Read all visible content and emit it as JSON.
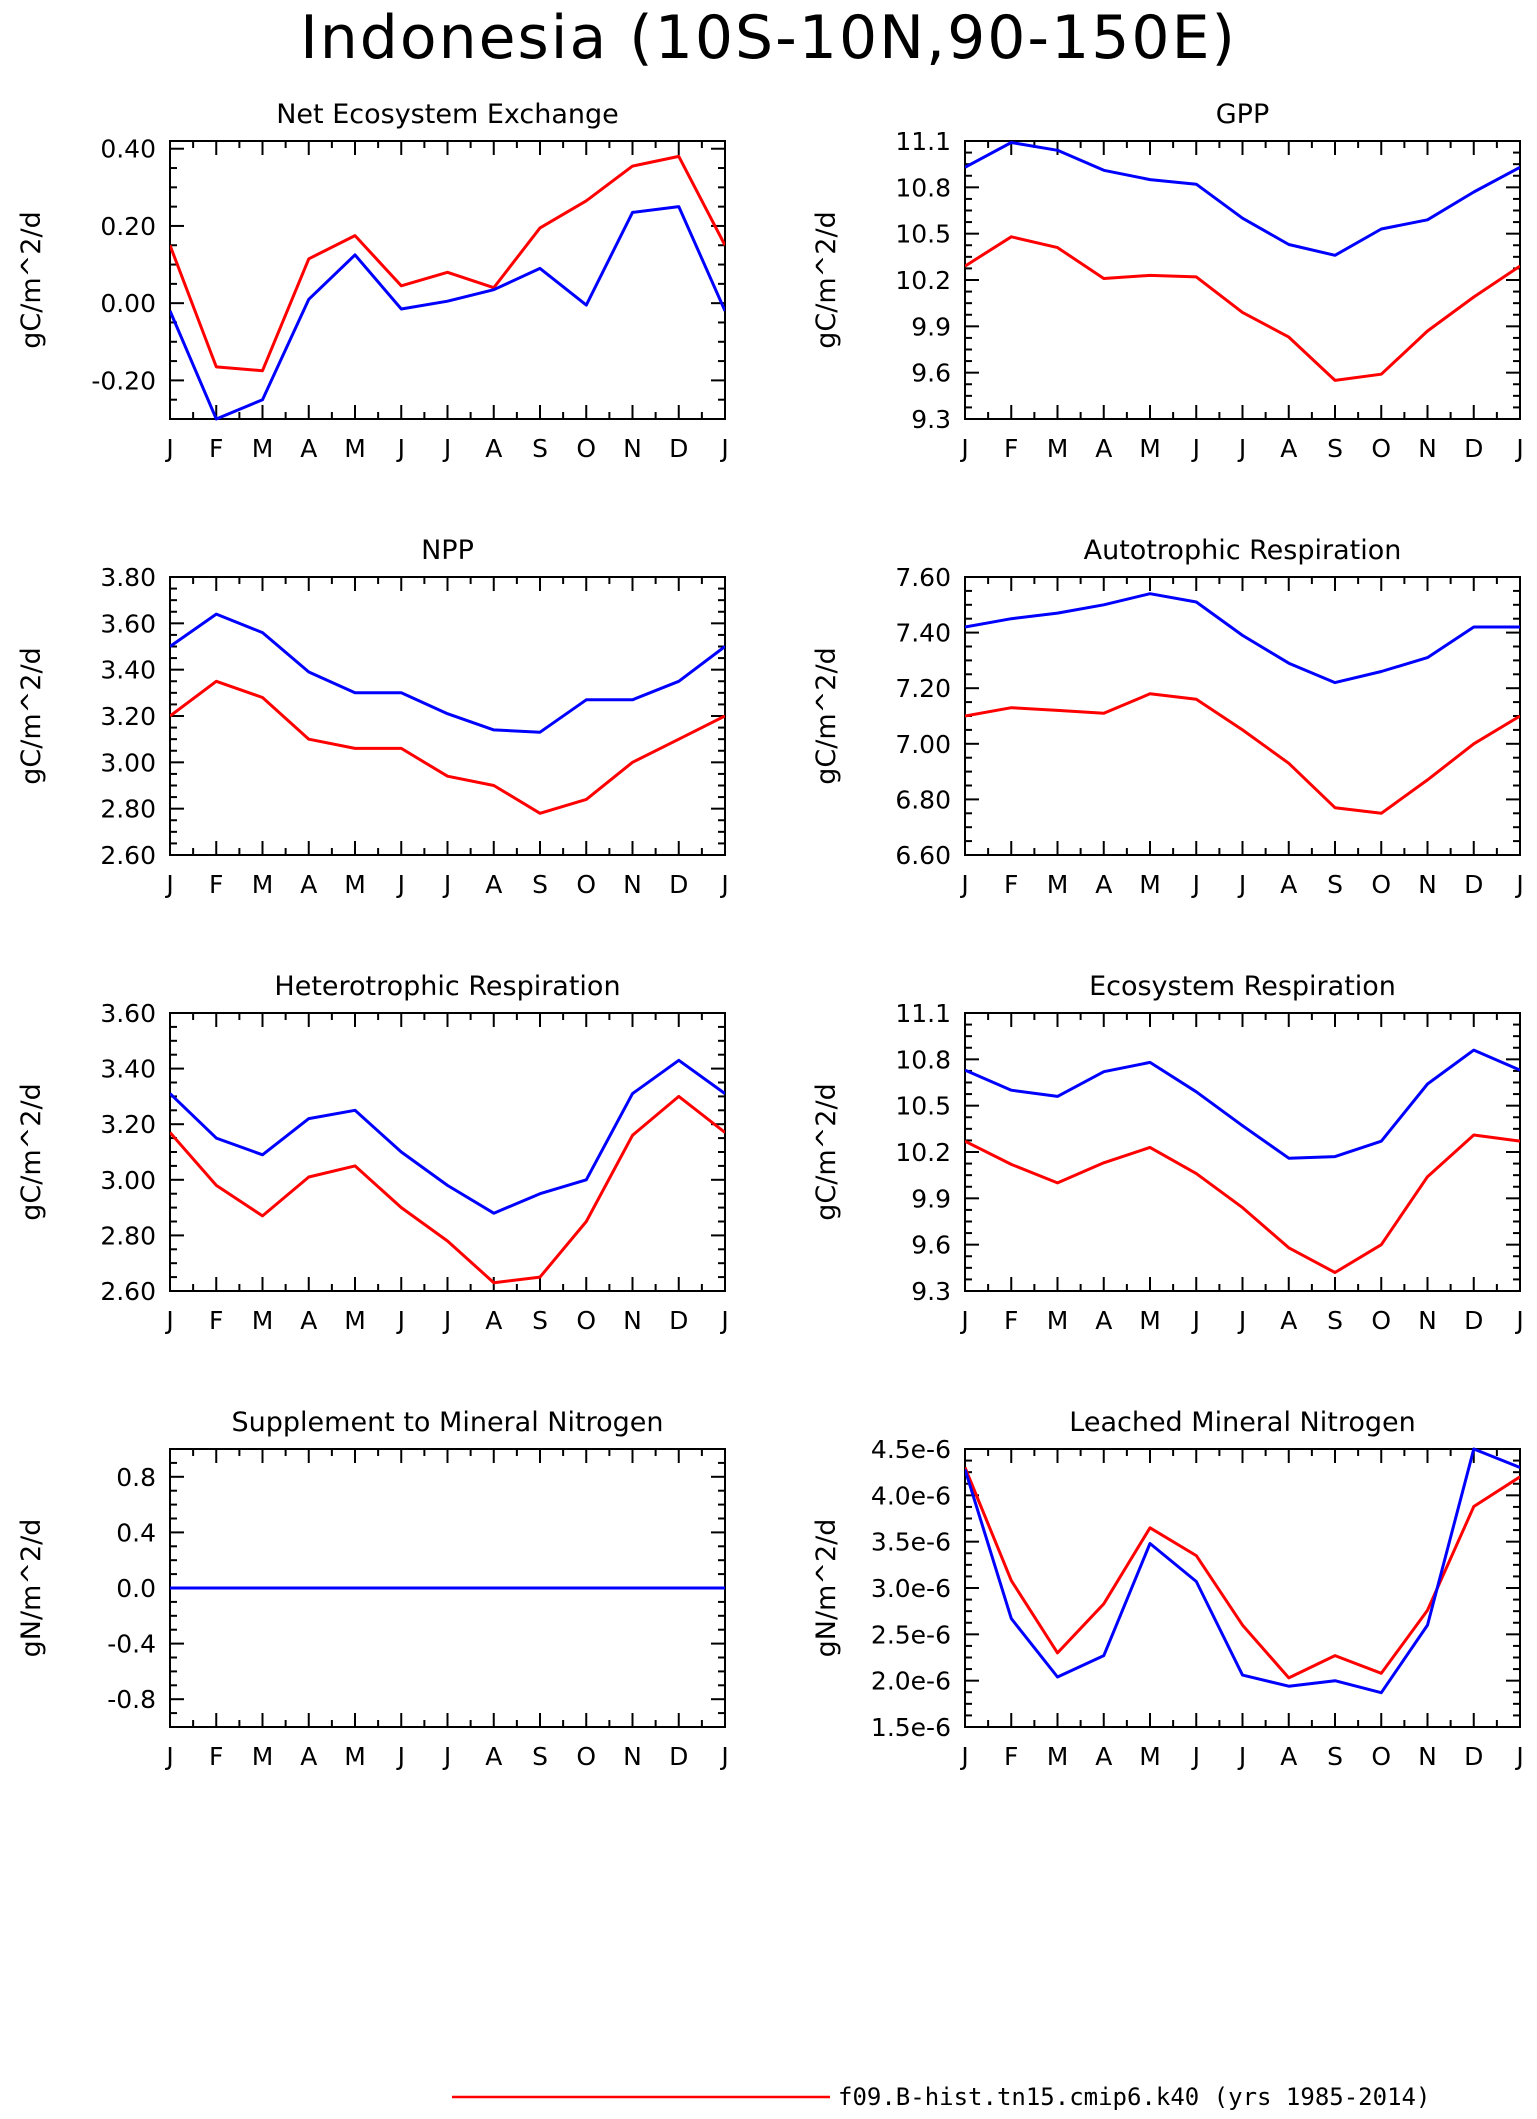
{
  "title": "Indonesia (10S-10N,90-150E)",
  "colors": {
    "case": "#ff0000",
    "obs": "#0000ff",
    "frame": "#000000"
  },
  "legend": {
    "entries": [
      {
        "label": "f09.B-hist.tn15.cmip6.k40 (yrs 1985-2014)",
        "color": "#ff0000"
      }
    ]
  },
  "chart_data": [
    {
      "type": "line",
      "title": "Net Ecosystem Exchange",
      "ylabel": "gC/m^2/d",
      "categories": [
        "J",
        "F",
        "M",
        "A",
        "M",
        "J",
        "J",
        "A",
        "S",
        "O",
        "N",
        "D",
        "J"
      ],
      "ylim": [
        -0.3,
        0.42
      ],
      "yticks": [
        -0.2,
        0.0,
        0.2,
        0.4
      ],
      "ytick_labels": [
        "-0.20",
        "0.00",
        "0.20",
        "0.40"
      ],
      "series": [
        {
          "color": "#ff0000",
          "values": [
            0.15,
            -0.165,
            -0.175,
            0.115,
            0.175,
            0.045,
            0.08,
            0.04,
            0.195,
            0.265,
            0.355,
            0.38,
            0.15
          ]
        },
        {
          "color": "#0000ff",
          "values": [
            -0.02,
            -0.3,
            -0.25,
            0.01,
            0.125,
            -0.015,
            0.005,
            0.035,
            0.09,
            -0.005,
            0.235,
            0.25,
            -0.02
          ]
        }
      ]
    },
    {
      "type": "line",
      "title": "GPP",
      "ylabel": "gC/m^2/d",
      "categories": [
        "J",
        "F",
        "M",
        "A",
        "M",
        "J",
        "J",
        "A",
        "S",
        "O",
        "N",
        "D",
        "J"
      ],
      "ylim": [
        9.3,
        11.1
      ],
      "yticks": [
        9.3,
        9.6,
        9.9,
        10.2,
        10.5,
        10.8,
        11.1
      ],
      "ytick_labels": [
        "9.3",
        "9.6",
        "9.9",
        "10.2",
        "10.5",
        "10.8",
        "11.1"
      ],
      "series": [
        {
          "color": "#ff0000",
          "values": [
            10.29,
            10.48,
            10.41,
            10.21,
            10.23,
            10.22,
            9.99,
            9.83,
            9.55,
            9.59,
            9.87,
            10.09,
            10.29
          ]
        },
        {
          "color": "#0000ff",
          "values": [
            10.93,
            11.09,
            11.04,
            10.91,
            10.85,
            10.82,
            10.6,
            10.43,
            10.36,
            10.53,
            10.59,
            10.77,
            10.93
          ]
        }
      ]
    },
    {
      "type": "line",
      "title": "NPP",
      "ylabel": "gC/m^2/d",
      "categories": [
        "J",
        "F",
        "M",
        "A",
        "M",
        "J",
        "J",
        "A",
        "S",
        "O",
        "N",
        "D",
        "J"
      ],
      "ylim": [
        2.6,
        3.8
      ],
      "yticks": [
        2.6,
        2.8,
        3.0,
        3.2,
        3.4,
        3.6,
        3.8
      ],
      "ytick_labels": [
        "2.60",
        "2.80",
        "3.00",
        "3.20",
        "3.40",
        "3.60",
        "3.80"
      ],
      "series": [
        {
          "color": "#ff0000",
          "values": [
            3.2,
            3.35,
            3.28,
            3.1,
            3.06,
            3.06,
            2.94,
            2.9,
            2.78,
            2.84,
            3.0,
            3.1,
            3.2
          ]
        },
        {
          "color": "#0000ff",
          "values": [
            3.5,
            3.64,
            3.56,
            3.39,
            3.3,
            3.3,
            3.21,
            3.14,
            3.13,
            3.27,
            3.27,
            3.35,
            3.5
          ]
        }
      ]
    },
    {
      "type": "line",
      "title": "Autotrophic Respiration",
      "ylabel": "gC/m^2/d",
      "categories": [
        "J",
        "F",
        "M",
        "A",
        "M",
        "J",
        "J",
        "A",
        "S",
        "O",
        "N",
        "D",
        "J"
      ],
      "ylim": [
        6.6,
        7.6
      ],
      "yticks": [
        6.6,
        6.8,
        7.0,
        7.2,
        7.4,
        7.6
      ],
      "ytick_labels": [
        "6.60",
        "6.80",
        "7.00",
        "7.20",
        "7.40",
        "7.60"
      ],
      "series": [
        {
          "color": "#ff0000",
          "values": [
            7.1,
            7.13,
            7.12,
            7.11,
            7.18,
            7.16,
            7.05,
            6.93,
            6.77,
            6.75,
            6.87,
            7.0,
            7.1
          ]
        },
        {
          "color": "#0000ff",
          "values": [
            7.42,
            7.45,
            7.47,
            7.5,
            7.54,
            7.51,
            7.39,
            7.29,
            7.22,
            7.26,
            7.31,
            7.42,
            7.42
          ]
        }
      ]
    },
    {
      "type": "line",
      "title": "Heterotrophic Respiration",
      "ylabel": "gC/m^2/d",
      "categories": [
        "J",
        "F",
        "M",
        "A",
        "M",
        "J",
        "J",
        "A",
        "S",
        "O",
        "N",
        "D",
        "J"
      ],
      "ylim": [
        2.6,
        3.6
      ],
      "yticks": [
        2.6,
        2.8,
        3.0,
        3.2,
        3.4,
        3.6
      ],
      "ytick_labels": [
        "2.60",
        "2.80",
        "3.00",
        "3.20",
        "3.40",
        "3.60"
      ],
      "series": [
        {
          "color": "#ff0000",
          "values": [
            3.17,
            2.98,
            2.87,
            3.01,
            3.05,
            2.9,
            2.78,
            2.63,
            2.65,
            2.85,
            3.16,
            3.3,
            3.17
          ]
        },
        {
          "color": "#0000ff",
          "values": [
            3.31,
            3.15,
            3.09,
            3.22,
            3.25,
            3.1,
            2.98,
            2.88,
            2.95,
            3.0,
            3.31,
            3.43,
            3.31
          ]
        }
      ]
    },
    {
      "type": "line",
      "title": "Ecosystem Respiration",
      "ylabel": "gC/m^2/d",
      "categories": [
        "J",
        "F",
        "M",
        "A",
        "M",
        "J",
        "J",
        "A",
        "S",
        "O",
        "N",
        "D",
        "J"
      ],
      "ylim": [
        9.3,
        11.1
      ],
      "yticks": [
        9.3,
        9.6,
        9.9,
        10.2,
        10.5,
        10.8,
        11.1
      ],
      "ytick_labels": [
        "9.3",
        "9.6",
        "9.9",
        "10.2",
        "10.5",
        "10.8",
        "11.1"
      ],
      "series": [
        {
          "color": "#ff0000",
          "values": [
            10.27,
            10.12,
            10.0,
            10.13,
            10.23,
            10.06,
            9.84,
            9.58,
            9.42,
            9.6,
            10.04,
            10.31,
            10.27
          ]
        },
        {
          "color": "#0000ff",
          "values": [
            10.73,
            10.6,
            10.56,
            10.72,
            10.78,
            10.59,
            10.37,
            10.16,
            10.17,
            10.27,
            10.64,
            10.86,
            10.73
          ]
        }
      ]
    },
    {
      "type": "line",
      "title": "Supplement to Mineral Nitrogen",
      "ylabel": "gN/m^2/d",
      "categories": [
        "J",
        "F",
        "M",
        "A",
        "M",
        "J",
        "J",
        "A",
        "S",
        "O",
        "N",
        "D",
        "J"
      ],
      "ylim": [
        -1.0,
        1.0
      ],
      "yticks": [
        -0.8,
        -0.4,
        0.0,
        0.4,
        0.8
      ],
      "ytick_labels": [
        "-0.8",
        "-0.4",
        "0.0",
        "0.4",
        "0.8"
      ],
      "series": [
        {
          "color": "#ff0000",
          "values": [
            0,
            0,
            0,
            0,
            0,
            0,
            0,
            0,
            0,
            0,
            0,
            0,
            0
          ]
        },
        {
          "color": "#0000ff",
          "values": [
            0,
            0,
            0,
            0,
            0,
            0,
            0,
            0,
            0,
            0,
            0,
            0,
            0
          ]
        }
      ]
    },
    {
      "type": "line",
      "title": "Leached Mineral Nitrogen",
      "ylabel": "gN/m^2/d",
      "categories": [
        "J",
        "F",
        "M",
        "A",
        "M",
        "J",
        "J",
        "A",
        "S",
        "O",
        "N",
        "D",
        "J"
      ],
      "ylim": [
        1.5e-06,
        4.5e-06
      ],
      "yticks": [
        1.5e-06,
        2e-06,
        2.5e-06,
        3e-06,
        3.5e-06,
        4e-06,
        4.5e-06
      ],
      "ytick_labels": [
        "1.5e-6",
        "2.0e-6",
        "2.5e-6",
        "3.0e-6",
        "3.5e-6",
        "4.0e-6",
        "4.5e-6"
      ],
      "series": [
        {
          "color": "#ff0000",
          "values": [
            4.3e-06,
            3.08e-06,
            2.3e-06,
            2.83e-06,
            3.65e-06,
            3.35e-06,
            2.6e-06,
            2.03e-06,
            2.27e-06,
            2.08e-06,
            2.76e-06,
            3.88e-06,
            4.2e-06
          ]
        },
        {
          "color": "#0000ff",
          "values": [
            4.28e-06,
            2.67e-06,
            2.04e-06,
            2.27e-06,
            3.48e-06,
            3.07e-06,
            2.06e-06,
            1.94e-06,
            2e-06,
            1.87e-06,
            2.6e-06,
            4.5e-06,
            4.3e-06
          ]
        }
      ]
    }
  ]
}
